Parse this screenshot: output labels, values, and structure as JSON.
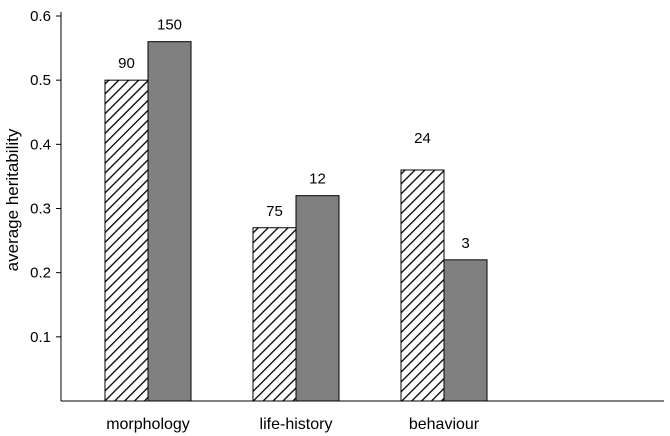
{
  "chart_data": {
    "type": "bar",
    "ylabel": "average heritability",
    "xlabel": "",
    "title": "",
    "ylim": [
      0,
      0.6
    ],
    "yticks": [
      {
        "value": 0.1,
        "label": "0.1"
      },
      {
        "value": 0.2,
        "label": "0.2"
      },
      {
        "value": 0.3,
        "label": "0.3"
      },
      {
        "value": 0.4,
        "label": "0.4"
      },
      {
        "value": 0.5,
        "label": "0.5"
      },
      {
        "value": 0.6,
        "label": "0.6"
      }
    ],
    "categories": [
      "morphology",
      "life-history",
      "behaviour"
    ],
    "series": [
      {
        "pattern": "hatched",
        "fill_color": "#ffffff",
        "values": [
          0.5,
          0.27,
          0.36
        ],
        "labels": [
          "90",
          "75",
          "24"
        ]
      },
      {
        "pattern": "solid",
        "fill_color": "#808080",
        "values": [
          0.56,
          0.32,
          0.22
        ],
        "labels": [
          "150",
          "12",
          "3"
        ]
      }
    ],
    "grid": false,
    "legend": "none"
  }
}
